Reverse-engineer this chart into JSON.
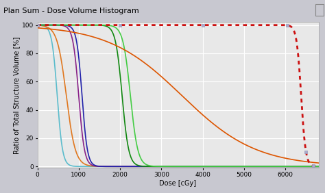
{
  "title": "Plan Sum - Dose Volume Histogram",
  "xlabel": "Dose [cGy]",
  "ylabel": "Ratio of Total Structure Volume [%]",
  "xlim": [
    0,
    6800
  ],
  "ylim": [
    -1,
    102
  ],
  "outer_bg": "#c8c8d0",
  "title_bar_color": "#dcdce8",
  "plot_bg_color": "#e8e8e8",
  "grid_color": "#ffffff",
  "curves": [
    {
      "name": "cyan",
      "color": "#5bbccc",
      "linewidth": 1.2,
      "inflection": 480,
      "steepness": 65
    },
    {
      "name": "orange",
      "color": "#e07820",
      "linewidth": 1.2,
      "inflection": 700,
      "steepness": 110
    },
    {
      "name": "purple",
      "color": "#882288",
      "linewidth": 1.2,
      "inflection": 1000,
      "steepness": 70
    },
    {
      "name": "dark_blue",
      "color": "#2222aa",
      "linewidth": 1.2,
      "inflection": 1080,
      "steepness": 65
    },
    {
      "name": "dark_green",
      "color": "#118811",
      "linewidth": 1.2,
      "inflection": 2050,
      "steepness": 80
    },
    {
      "name": "light_green",
      "color": "#44cc44",
      "linewidth": 1.2,
      "inflection": 2250,
      "steepness": 90
    },
    {
      "name": "orange_wide",
      "color": "#dd5500",
      "linewidth": 1.2,
      "inflection": 3500,
      "steepness": 900
    },
    {
      "name": "red_dotted",
      "color": "#cc1111",
      "linewidth": 2.0,
      "inflection": 6380,
      "steepness": 55
    }
  ],
  "marker_positions": [
    0,
    2000,
    4000,
    6050,
    6500,
    6680
  ],
  "marker_color": "#aaaacc",
  "title_fontsize": 8,
  "axis_label_fontsize": 7,
  "tick_fontsize": 6.5
}
